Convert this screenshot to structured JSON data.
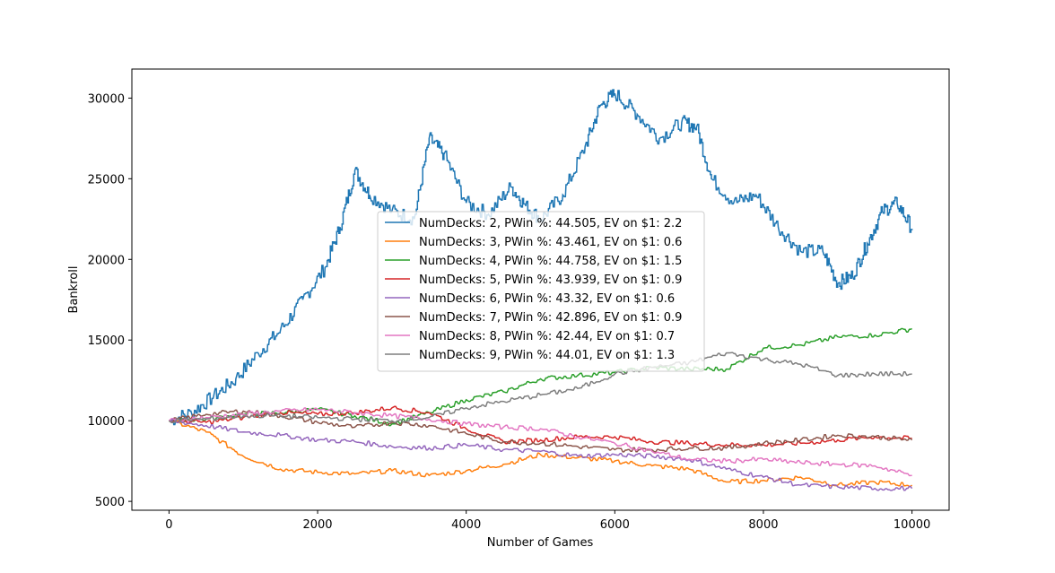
{
  "chart_data": {
    "type": "line",
    "title": "",
    "xlabel": "Number of Games",
    "ylabel": "Bankroll",
    "xlim": [
      -500,
      10500
    ],
    "ylim": [
      4450,
      31800
    ],
    "xticks": [
      0,
      2000,
      4000,
      6000,
      8000,
      10000
    ],
    "yticks": [
      5000,
      10000,
      15000,
      20000,
      25000,
      30000
    ],
    "grid": false,
    "legend_position": "center",
    "series": [
      {
        "name": "NumDecks: 2, PWin %: 44.505, EV on $1: 2.2",
        "color": "#1f77b4",
        "x": [
          0,
          300,
          600,
          900,
          1200,
          1500,
          1800,
          2100,
          2300,
          2500,
          2700,
          3000,
          3300,
          3500,
          3700,
          4000,
          4300,
          4600,
          4800,
          5000,
          5300,
          5600,
          5800,
          6000,
          6300,
          6600,
          6900,
          7100,
          7300,
          7600,
          7900,
          8200,
          8500,
          8800,
          9000,
          9200,
          9400,
          9600,
          9800,
          10000
        ],
        "y": [
          10000,
          10500,
          11500,
          12600,
          14200,
          15600,
          17500,
          19500,
          22000,
          25500,
          24000,
          23000,
          22500,
          27500,
          26500,
          23500,
          22800,
          24500,
          23300,
          22500,
          24000,
          27000,
          29500,
          30300,
          29000,
          27500,
          28500,
          28200,
          25000,
          23500,
          24000,
          22000,
          20500,
          20500,
          18500,
          19000,
          21000,
          23000,
          23500,
          21900
        ]
      },
      {
        "name": "NumDecks: 3, PWin %: 43.461, EV on $1: 0.6",
        "color": "#ff7f0e",
        "x": [
          0,
          500,
          1000,
          1500,
          2000,
          2500,
          3000,
          3500,
          4000,
          4500,
          5000,
          5500,
          6000,
          6500,
          7000,
          7500,
          8000,
          8500,
          9000,
          9500,
          10000
        ],
        "y": [
          10000,
          9300,
          7800,
          7000,
          6800,
          6700,
          6900,
          6600,
          6900,
          7300,
          7900,
          7700,
          7500,
          7200,
          7000,
          6200,
          6300,
          6500,
          6000,
          6200,
          6000
        ]
      },
      {
        "name": "NumDecks: 4, PWin %: 44.758, EV on $1: 1.5",
        "color": "#2ca02c",
        "x": [
          0,
          500,
          1000,
          1500,
          2000,
          2500,
          3000,
          3500,
          4000,
          4500,
          5000,
          5500,
          6000,
          6500,
          7000,
          7500,
          8000,
          8500,
          9000,
          9500,
          10000
        ],
        "y": [
          10000,
          10100,
          10400,
          10500,
          10700,
          10300,
          9800,
          10500,
          11300,
          11800,
          12600,
          12800,
          13000,
          13300,
          13200,
          13200,
          14500,
          14700,
          15200,
          15300,
          15700
        ]
      },
      {
        "name": "NumDecks: 5, PWin %: 43.939, EV on $1: 0.9",
        "color": "#d62728",
        "x": [
          0,
          500,
          1000,
          1500,
          2000,
          2500,
          3000,
          3500,
          4000,
          4500,
          5000,
          5500,
          6000,
          6500,
          7000,
          7500,
          8000,
          8500,
          9000,
          9500,
          10000
        ],
        "y": [
          10000,
          9900,
          10200,
          10500,
          10400,
          10500,
          10800,
          10500,
          9500,
          8700,
          8800,
          9000,
          9000,
          8700,
          8600,
          8500,
          8500,
          8600,
          8800,
          9000,
          8900
        ]
      },
      {
        "name": "NumDecks: 6, PWin %: 43.32, EV on $1: 0.6",
        "color": "#9467bd",
        "x": [
          0,
          500,
          1000,
          1500,
          2000,
          2500,
          3000,
          3500,
          4000,
          4500,
          5000,
          5500,
          6000,
          6500,
          7000,
          7500,
          8000,
          8500,
          9000,
          9500,
          10000
        ],
        "y": [
          10000,
          9700,
          9300,
          9100,
          8800,
          8700,
          8400,
          8300,
          8500,
          8200,
          8100,
          7800,
          7900,
          7800,
          7600,
          7000,
          6500,
          6000,
          5900,
          5800,
          5800
        ]
      },
      {
        "name": "NumDecks: 7, PWin %: 42.896, EV on $1: 0.9",
        "color": "#8c564b",
        "x": [
          0,
          500,
          1000,
          1500,
          2000,
          2500,
          3000,
          3500,
          4000,
          4500,
          5000,
          5500,
          6000,
          6500,
          7000,
          7500,
          8000,
          8500,
          9000,
          9500,
          10000
        ],
        "y": [
          10000,
          10400,
          10600,
          10300,
          9900,
          9600,
          9900,
          9700,
          9200,
          8700,
          8600,
          8400,
          8200,
          8200,
          8300,
          8300,
          8600,
          8800,
          9100,
          9000,
          8800
        ]
      },
      {
        "name": "NumDecks: 8, PWin %: 42.44, EV on $1: 0.7",
        "color": "#e377c2",
        "x": [
          0,
          500,
          1000,
          1500,
          2000,
          2500,
          3000,
          3500,
          4000,
          4500,
          5000,
          5500,
          6000,
          6500,
          7000,
          7500,
          8000,
          8500,
          9000,
          9500,
          10000
        ],
        "y": [
          10000,
          10200,
          10400,
          10600,
          10700,
          10500,
          10300,
          10100,
          9800,
          9600,
          9500,
          9000,
          8600,
          8100,
          7600,
          7500,
          7600,
          7400,
          7300,
          7200,
          6600
        ]
      },
      {
        "name": "NumDecks: 9, PWin %: 44.01, EV on $1: 1.3",
        "color": "#7f7f7f",
        "x": [
          0,
          500,
          1000,
          1500,
          2000,
          2500,
          3000,
          3500,
          4000,
          4500,
          5000,
          5500,
          6000,
          6500,
          7000,
          7500,
          8000,
          8500,
          9000,
          9500,
          10000
        ],
        "y": [
          10000,
          10100,
          10300,
          10300,
          10200,
          10100,
          10000,
          10200,
          10800,
          11200,
          11600,
          12000,
          12900,
          13300,
          13600,
          14200,
          13800,
          13500,
          12800,
          12900,
          12900
        ]
      }
    ]
  }
}
